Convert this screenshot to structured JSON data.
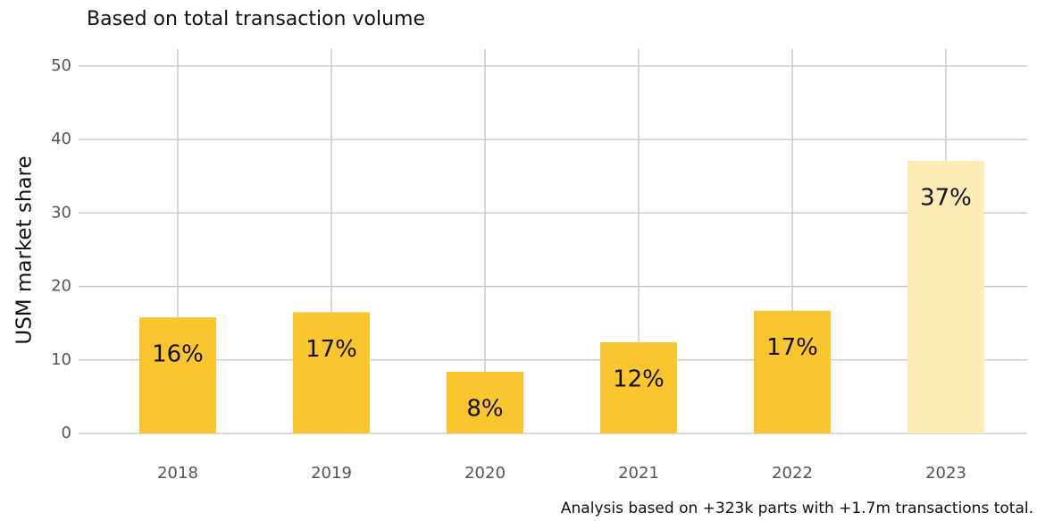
{
  "chart_data": {
    "type": "bar",
    "title": "Based on total transaction volume",
    "y_label": "USM market share",
    "caption": "Analysis based on +323k parts with +1.7m transactions total.",
    "categories": [
      "2018",
      "2019",
      "2020",
      "2021",
      "2022",
      "2023"
    ],
    "values": [
      15.8,
      16.5,
      8.4,
      12.4,
      16.7,
      37.1
    ],
    "value_labels": [
      "16%",
      "17%",
      "8%",
      "12%",
      "17%",
      "37%"
    ],
    "colors": [
      "#f9c630",
      "#f9c630",
      "#f9c630",
      "#f9c630",
      "#f9c630",
      "#fcebb5"
    ],
    "ylim": [
      0,
      52.3
    ],
    "yticks": [
      0,
      10,
      20,
      30,
      40,
      50
    ],
    "grid": true
  }
}
